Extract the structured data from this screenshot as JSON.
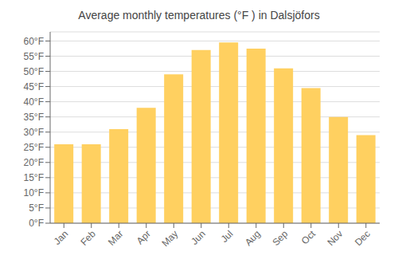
{
  "chart_data": {
    "type": "bar",
    "title": "Average monthly temperatures (°F ) in Dalsjöfors",
    "categories": [
      "Jan",
      "Feb",
      "Mar",
      "Apr",
      "May",
      "Jun",
      "Jul",
      "Aug",
      "Sep",
      "Oct",
      "Nov",
      "Dec"
    ],
    "values": [
      26,
      26,
      31,
      38,
      49,
      57,
      59.5,
      57.5,
      51,
      44.5,
      35,
      29
    ],
    "color": "#FFD060",
    "ylim": [
      0,
      63
    ],
    "yticks": [
      {
        "value": 0,
        "label": "0°F"
      },
      {
        "value": 5,
        "label": "5°F"
      },
      {
        "value": 10,
        "label": "10°F"
      },
      {
        "value": 15,
        "label": "15°F"
      },
      {
        "value": 20,
        "label": "20°F"
      },
      {
        "value": 25,
        "label": "25°F"
      },
      {
        "value": 30,
        "label": "30°F"
      },
      {
        "value": 35,
        "label": "35°F"
      },
      {
        "value": 40,
        "label": "40°F"
      },
      {
        "value": 45,
        "label": "45°F"
      },
      {
        "value": 50,
        "label": "50°F"
      },
      {
        "value": 55,
        "label": "55°F"
      },
      {
        "value": 60,
        "label": "60°F"
      }
    ],
    "grid": true
  }
}
